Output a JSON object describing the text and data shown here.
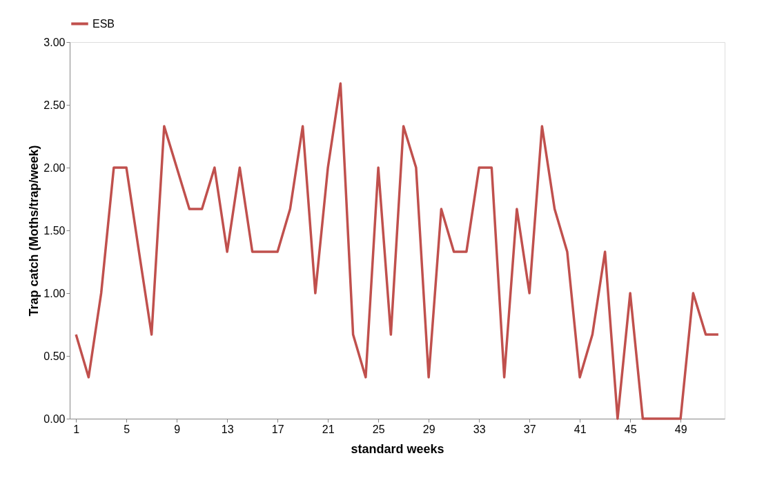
{
  "chart_data": {
    "type": "line",
    "xlabel": "standard weeks",
    "ylabel": "Trap catch (Moths/trap/week)",
    "categories": [
      "1",
      null,
      null,
      null,
      "5",
      null,
      null,
      null,
      "9",
      null,
      null,
      null,
      "13",
      null,
      null,
      null,
      "17",
      null,
      null,
      null,
      "21",
      null,
      null,
      null,
      "25",
      null,
      null,
      null,
      "29",
      null,
      null,
      null,
      "33",
      null,
      null,
      null,
      "37",
      null,
      null,
      null,
      "41",
      null,
      null,
      null,
      "45",
      null,
      null,
      null,
      "49",
      null,
      null,
      null
    ],
    "series": [
      {
        "name": "ESB",
        "color": "#c0504d",
        "values": [
          0.67,
          0.33,
          1.0,
          2.0,
          2.0,
          1.33,
          0.67,
          2.33,
          2.0,
          1.67,
          1.67,
          2.0,
          1.33,
          2.0,
          1.33,
          1.33,
          1.33,
          1.67,
          2.33,
          1.0,
          2.0,
          2.67,
          0.67,
          0.33,
          2.0,
          0.67,
          2.33,
          2.0,
          0.33,
          1.67,
          1.33,
          1.33,
          2.0,
          2.0,
          0.33,
          1.67,
          1.0,
          2.33,
          1.67,
          1.33,
          0.33,
          0.67,
          1.33,
          0.0,
          1.0,
          0.0,
          0.0,
          0.0,
          0.0,
          1.0,
          0.67,
          0.67
        ]
      }
    ],
    "ylim": [
      0,
      3
    ],
    "yticks": [
      {
        "value": 0,
        "label": "0.00"
      },
      {
        "value": 0.5,
        "label": "0.50"
      },
      {
        "value": 1,
        "label": "1.00"
      },
      {
        "value": 1.5,
        "label": "1.50"
      },
      {
        "value": 2,
        "label": "2.00"
      },
      {
        "value": 2.5,
        "label": "2.50"
      },
      {
        "value": 3,
        "label": "3.00"
      }
    ],
    "grid": false,
    "legend": "top",
    "marker": "none",
    "line_style": "solid"
  }
}
